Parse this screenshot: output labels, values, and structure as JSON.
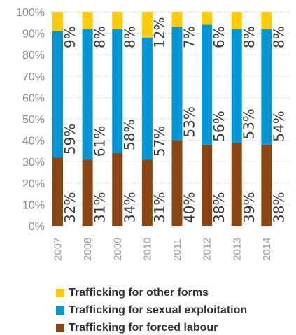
{
  "colors": {
    "other": "#FFCC00",
    "sexual": "#0096D6",
    "forced": "#8B4513",
    "grid": "#C8C8C8"
  },
  "chart_data": {
    "type": "bar",
    "stacked": true,
    "title": "",
    "xlabel": "",
    "ylabel": "",
    "ylim": [
      0,
      100
    ],
    "y_unit": "%",
    "y_ticks": [
      "0%",
      "10%",
      "20%",
      "30%",
      "40%",
      "50%",
      "60%",
      "70%",
      "80%",
      "90%",
      "100%"
    ],
    "grid": "horizontal dotted",
    "legend_position": "bottom",
    "categories": [
      "2007",
      "2008",
      "2009",
      "2010",
      "2011",
      "2012",
      "2013",
      "2014"
    ],
    "series": [
      {
        "name": "Trafficking for forced labour",
        "color_key": "forced",
        "values": [
          32,
          31,
          34,
          31,
          40,
          38,
          39,
          38
        ],
        "labels": [
          "32%",
          "31%",
          "34%",
          "31%",
          "40%",
          "38%",
          "39%",
          "38%"
        ]
      },
      {
        "name": "Trafficking for sexual exploitation",
        "color_key": "sexual",
        "values": [
          59,
          61,
          58,
          57,
          53,
          56,
          53,
          54
        ],
        "labels": [
          "59%",
          "61%",
          "58%",
          "57%",
          "53%",
          "56%",
          "53%",
          "54%"
        ]
      },
      {
        "name": "Trafficking for other forms",
        "color_key": "other",
        "values": [
          9,
          8,
          8,
          12,
          7,
          6,
          8,
          8
        ],
        "labels": [
          "9%",
          "8%",
          "8%",
          "12%",
          "7%",
          "6%",
          "8%",
          "8%"
        ]
      }
    ]
  },
  "legend": [
    {
      "label": "Trafficking for other forms",
      "color_key": "other"
    },
    {
      "label": "Trafficking for sexual exploitation",
      "color_key": "sexual"
    },
    {
      "label": "Trafficking for forced labour",
      "color_key": "forced"
    }
  ]
}
